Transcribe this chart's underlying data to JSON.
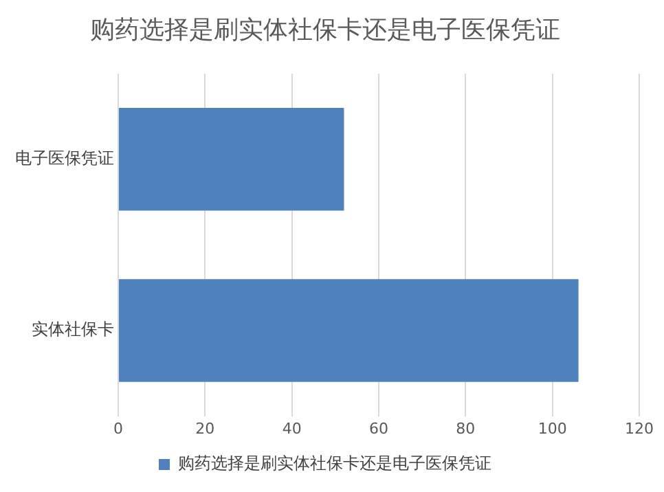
{
  "chart_data": {
    "type": "bar",
    "orientation": "horizontal",
    "title": "购药选择是刷实体社保卡还是电子医保凭证",
    "categories": [
      "电子医保凭证",
      "实体社保卡"
    ],
    "series": [
      {
        "name": "购药选择是刷实体社保卡还是电子医保凭证",
        "color": "#4f81bd",
        "values": [
          52,
          106
        ]
      }
    ],
    "xlim": [
      0,
      120
    ],
    "xticks": [
      0,
      20,
      40,
      60,
      80,
      100,
      120
    ],
    "grid": "x",
    "legend": "bottom"
  }
}
